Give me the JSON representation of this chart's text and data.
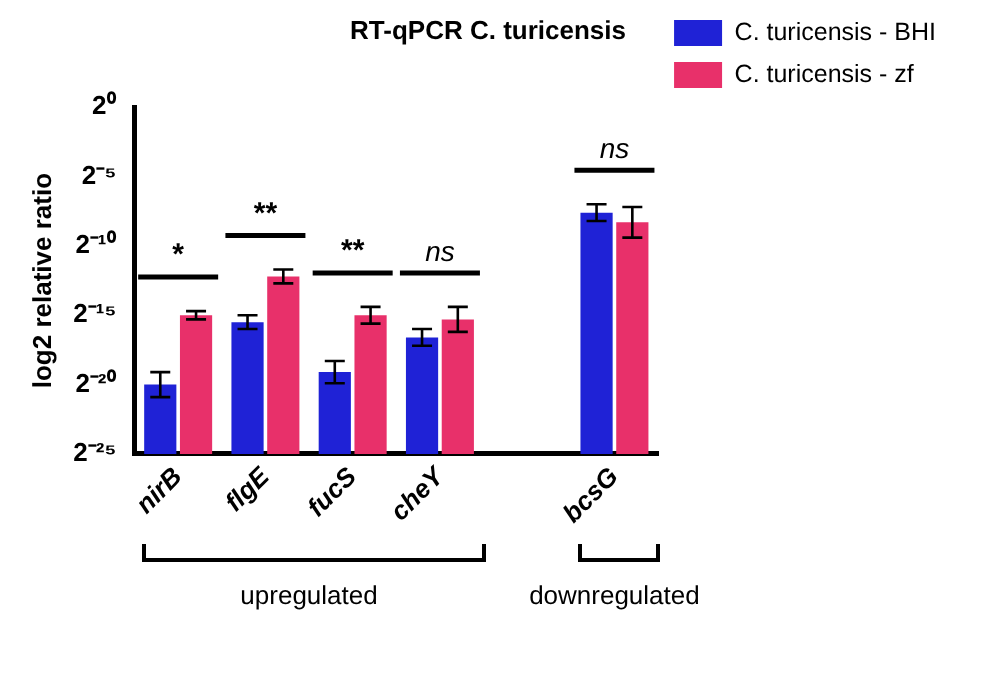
{
  "chart_data": {
    "type": "bar",
    "title": "RT-qPCR C. turicensis",
    "ylabel": "log2 relative ratio",
    "categories": [
      "nirB",
      "flgE",
      "fucS",
      "cheY",
      null,
      "bcsG"
    ],
    "series": [
      {
        "name": "C. turicensis - BHI",
        "color": "#1f22d6",
        "values": [
          9.54e-07,
          2.16e-05,
          1.78e-06,
          1.01e-05,
          null,
          0.00515
        ],
        "errors": [
          [
            5.11e-07,
            1.78e-06
          ],
          [
            1.53e-05,
            3.05e-05
          ],
          [
            1.02e-06,
            3.1e-06
          ],
          [
            6.64e-06,
            1.53e-05
          ],
          null,
          [
            0.0034,
            0.00781
          ]
        ]
      },
      {
        "name": "C. turicensis - zf",
        "color": "#e8306a",
        "values": [
          3.05e-05,
          0.000213,
          3.05e-05,
          2.48e-05,
          null,
          0.00317
        ],
        "errors": [
          [
            2.48e-05,
            3.76e-05
          ],
          [
            0.00015,
            0.000301
          ],
          [
            2.01e-05,
            4.63e-05
          ],
          [
            1.33e-05,
            4.63e-05
          ],
          null,
          [
            0.00148,
            0.0068
          ]
        ]
      }
    ],
    "log": "y",
    "ylim": [
      2.9802322387695312e-08,
      1
    ],
    "yticks": [
      {
        "value": 1,
        "label": "2⁰"
      },
      {
        "value": 0.03125,
        "label": "2⁻⁵"
      },
      {
        "value": 0.0009765625,
        "label": "2⁻¹⁰"
      },
      {
        "value": 3.0517578125e-05,
        "label": "2⁻¹⁵"
      },
      {
        "value": 9.5367431640625e-07,
        "label": "2⁻²⁰"
      },
      {
        "value": 2.9802322387695312e-08,
        "label": "2⁻²⁵"
      }
    ],
    "grid": false,
    "legend": "top right",
    "annotations": [
      "*",
      "**",
      "**",
      "ns",
      "ns",
      "upregulated",
      "downregulated"
    ]
  }
}
